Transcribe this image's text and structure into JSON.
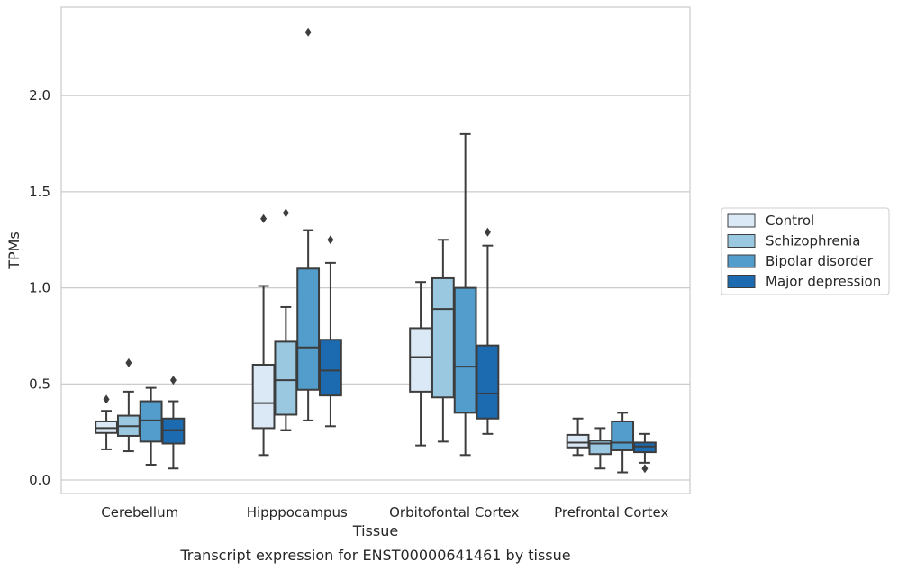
{
  "chart_data": {
    "type": "box",
    "caption": "Transcript expression for ENST00000641461 by tissue",
    "xlabel": "Tissue",
    "ylabel": "TPMs",
    "ylim": [
      -0.07,
      2.46
    ],
    "yticks": [
      0.0,
      0.5,
      1.0,
      1.5,
      2.0
    ],
    "ytick_labels": [
      "0.0",
      "0.5",
      "1.0",
      "1.5",
      "2.0"
    ],
    "grid": "horizontal",
    "legend_position": "right",
    "categories": [
      "Cerebellum",
      "Hipppocampus",
      "Orbitofontal Cortex",
      "Prefrontal Cortex"
    ],
    "series": [
      {
        "name": "Control",
        "color": "#dbe9f6",
        "boxes": [
          {
            "whisker_low": 0.16,
            "q1": 0.245,
            "median": 0.27,
            "q3": 0.305,
            "whisker_high": 0.36,
            "outliers": [
              0.42
            ]
          },
          {
            "whisker_low": 0.13,
            "q1": 0.27,
            "median": 0.4,
            "q3": 0.6,
            "whisker_high": 1.01,
            "outliers": [
              1.36
            ]
          },
          {
            "whisker_low": 0.18,
            "q1": 0.46,
            "median": 0.64,
            "q3": 0.79,
            "whisker_high": 1.03,
            "outliers": []
          },
          {
            "whisker_low": 0.13,
            "q1": 0.17,
            "median": 0.195,
            "q3": 0.235,
            "whisker_high": 0.32,
            "outliers": []
          }
        ]
      },
      {
        "name": "Schizophrenia",
        "color": "#9ac8e0",
        "boxes": [
          {
            "whisker_low": 0.15,
            "q1": 0.23,
            "median": 0.28,
            "q3": 0.335,
            "whisker_high": 0.46,
            "outliers": [
              0.61
            ]
          },
          {
            "whisker_low": 0.26,
            "q1": 0.34,
            "median": 0.52,
            "q3": 0.72,
            "whisker_high": 0.9,
            "outliers": [
              1.39
            ]
          },
          {
            "whisker_low": 0.2,
            "q1": 0.43,
            "median": 0.89,
            "q3": 1.05,
            "whisker_high": 1.25,
            "outliers": []
          },
          {
            "whisker_low": 0.06,
            "q1": 0.135,
            "median": 0.19,
            "q3": 0.205,
            "whisker_high": 0.27,
            "outliers": []
          }
        ]
      },
      {
        "name": "Bipolar disorder",
        "color": "#529dcc",
        "boxes": [
          {
            "whisker_low": 0.08,
            "q1": 0.2,
            "median": 0.31,
            "q3": 0.41,
            "whisker_high": 0.48,
            "outliers": []
          },
          {
            "whisker_low": 0.31,
            "q1": 0.47,
            "median": 0.69,
            "q3": 1.1,
            "whisker_high": 1.3,
            "outliers": [
              2.33
            ]
          },
          {
            "whisker_low": 0.13,
            "q1": 0.35,
            "median": 0.59,
            "q3": 1.0,
            "whisker_high": 1.8,
            "outliers": []
          },
          {
            "whisker_low": 0.04,
            "q1": 0.155,
            "median": 0.195,
            "q3": 0.305,
            "whisker_high": 0.35,
            "outliers": []
          }
        ]
      },
      {
        "name": "Major depression",
        "color": "#1c6aaf",
        "boxes": [
          {
            "whisker_low": 0.06,
            "q1": 0.19,
            "median": 0.26,
            "q3": 0.32,
            "whisker_high": 0.41,
            "outliers": [
              0.52
            ]
          },
          {
            "whisker_low": 0.28,
            "q1": 0.44,
            "median": 0.57,
            "q3": 0.73,
            "whisker_high": 1.13,
            "outliers": [
              1.25
            ]
          },
          {
            "whisker_low": 0.24,
            "q1": 0.32,
            "median": 0.45,
            "q3": 0.7,
            "whisker_high": 1.22,
            "outliers": [
              1.29
            ]
          },
          {
            "whisker_low": 0.09,
            "q1": 0.145,
            "median": 0.175,
            "q3": 0.195,
            "whisker_high": 0.24,
            "outliers": [
              0.06
            ]
          }
        ]
      }
    ]
  }
}
